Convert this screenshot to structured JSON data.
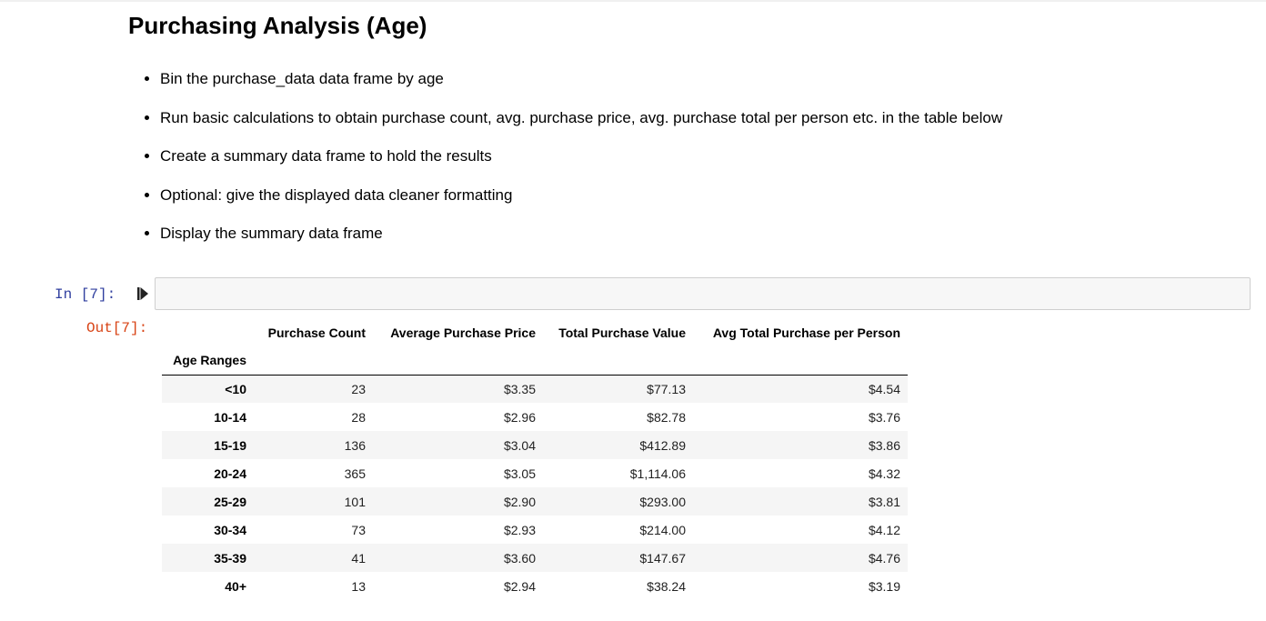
{
  "markdown": {
    "title": "Purchasing Analysis (Age)",
    "bullets": [
      "Bin the purchase_data data frame by age",
      "Run basic calculations to obtain purchase count, avg. purchase price, avg. purchase total per person etc. in the table below",
      "Create a summary data frame to hold the results",
      "Optional: give the displayed data cleaner formatting",
      "Display the summary data frame"
    ]
  },
  "cell": {
    "in_prompt": "In [7]:",
    "out_prompt": "Out[7]:",
    "run_icon": "run-cell-icon",
    "code": ""
  },
  "table": {
    "columns": [
      "Purchase Count",
      "Average Purchase Price",
      "Total Purchase Value",
      "Avg Total Purchase per Person"
    ],
    "index_name": "Age Ranges",
    "rows": [
      {
        "label": "<10",
        "values": [
          "23",
          "$3.35",
          "$77.13",
          "$4.54"
        ]
      },
      {
        "label": "10-14",
        "values": [
          "28",
          "$2.96",
          "$82.78",
          "$3.76"
        ]
      },
      {
        "label": "15-19",
        "values": [
          "136",
          "$3.04",
          "$412.89",
          "$3.86"
        ]
      },
      {
        "label": "20-24",
        "values": [
          "365",
          "$3.05",
          "$1,114.06",
          "$4.32"
        ]
      },
      {
        "label": "25-29",
        "values": [
          "101",
          "$2.90",
          "$293.00",
          "$3.81"
        ]
      },
      {
        "label": "30-34",
        "values": [
          "73",
          "$2.93",
          "$214.00",
          "$4.12"
        ]
      },
      {
        "label": "35-39",
        "values": [
          "41",
          "$3.60",
          "$147.67",
          "$4.76"
        ]
      },
      {
        "label": "40+",
        "values": [
          "13",
          "$2.94",
          "$38.24",
          "$3.19"
        ]
      }
    ]
  },
  "colors": {
    "in_prompt": "#303f9f",
    "out_prompt": "#d84315",
    "stripe": "#f5f5f5",
    "input_bg": "#f7f7f7"
  }
}
